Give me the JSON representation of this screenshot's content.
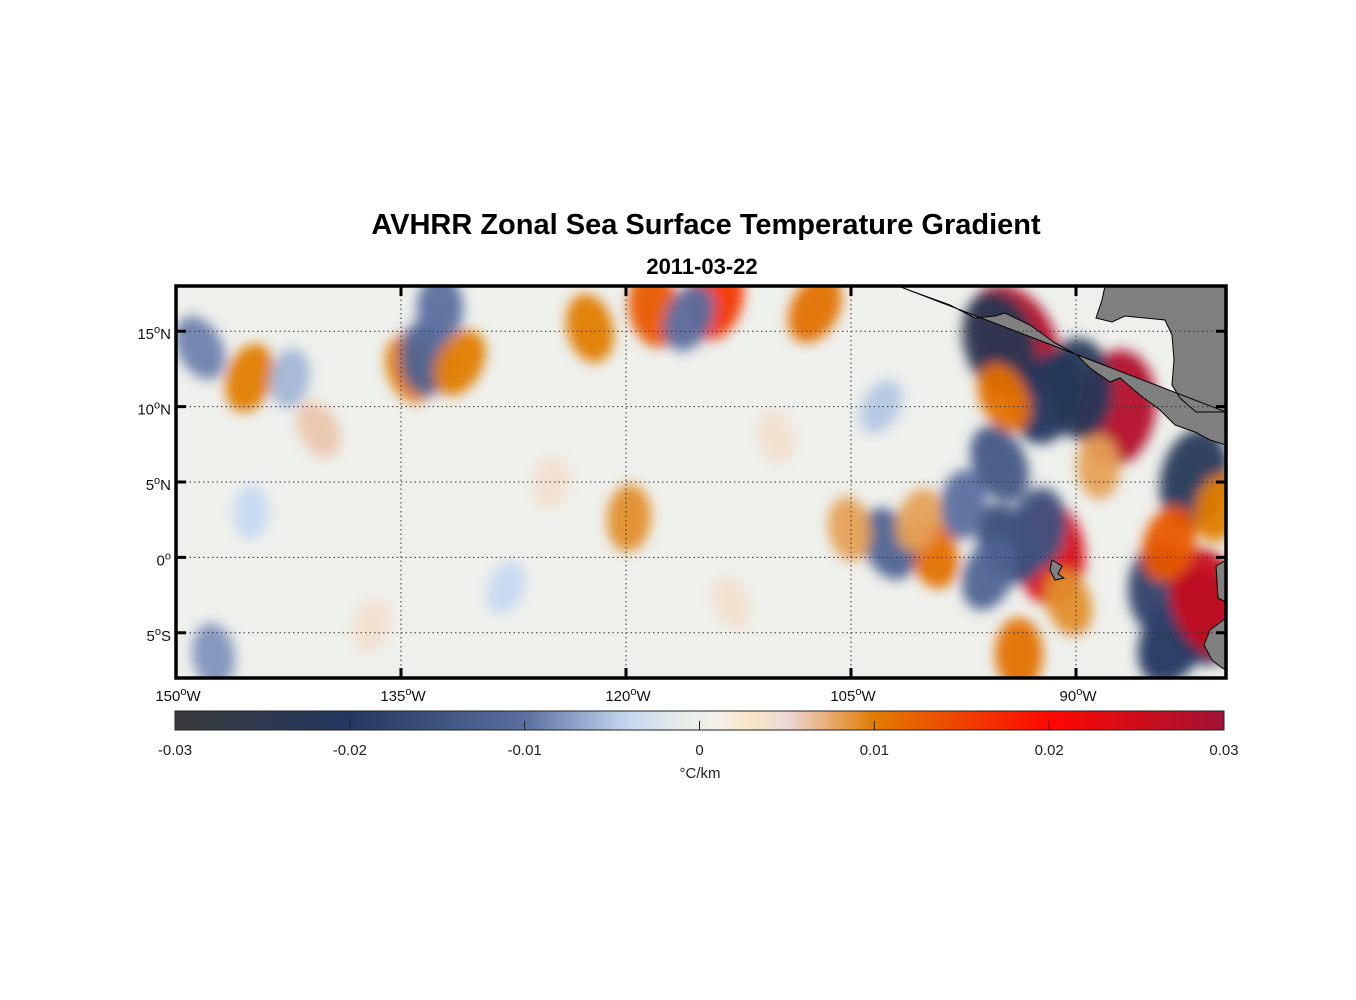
{
  "chart_data": {
    "type": "heatmap",
    "title": "AVHRR Zonal Sea Surface Temperature Gradient",
    "subtitle": "2011-03-22",
    "projection": "equirectangular",
    "lon_range": [
      -150,
      -80
    ],
    "lat_range": [
      -8,
      18
    ],
    "grid": true,
    "lon_ticks": [
      -150,
      -135,
      -120,
      -105,
      -90
    ],
    "lon_tick_labels": [
      "150",
      "135",
      "120",
      "105",
      "90"
    ],
    "lon_tick_suffix": "W",
    "lat_ticks": [
      15,
      10,
      5,
      0,
      -5
    ],
    "lat_tick_labels": [
      {
        "num": "15",
        "hemi": "N"
      },
      {
        "num": "10",
        "hemi": "N"
      },
      {
        "num": "5",
        "hemi": "N"
      },
      {
        "num": "0",
        "hemi": ""
      },
      {
        "num": "5",
        "hemi": "S"
      }
    ],
    "degree_symbol": "o",
    "colorbar": {
      "range": [
        -0.03,
        0.03
      ],
      "ticks": [
        -0.03,
        -0.02,
        -0.01,
        0,
        0.01,
        0.02,
        0.03
      ],
      "tick_labels": [
        "-0.03",
        "-0.02",
        "-0.01",
        "0",
        "0.01",
        "0.02",
        "0.03"
      ],
      "label": "°C/km",
      "colors": [
        {
          "v": -0.03,
          "c": "#3a3a3c"
        },
        {
          "v": -0.02,
          "c": "#23375f"
        },
        {
          "v": -0.01,
          "c": "#5b6f9f"
        },
        {
          "v": -0.004,
          "c": "#c6d8f0"
        },
        {
          "v": -0.001,
          "c": "#e6eee8"
        },
        {
          "v": 0.001,
          "c": "#f3efea"
        },
        {
          "v": 0.003,
          "c": "#f8e6c4"
        },
        {
          "v": 0.005,
          "c": "#ecd8d8"
        },
        {
          "v": 0.01,
          "c": "#e07c00"
        },
        {
          "v": 0.02,
          "c": "#ff0800"
        },
        {
          "v": 0.03,
          "c": "#a01235"
        }
      ]
    },
    "land_color": "#808080",
    "ocean_background": "#eef0ec",
    "features": [
      [
        -94.1,
        14.5,
        0.028
      ],
      [
        -87.3,
        9.9,
        0.028
      ],
      [
        -95.1,
        14.2,
        -0.024
      ],
      [
        -91.8,
        10.6,
        -0.02
      ],
      [
        -89.8,
        11.2,
        -0.022
      ],
      [
        -94.8,
        10.6,
        0.011
      ],
      [
        -82.1,
        5.2,
        -0.022
      ],
      [
        -81.5,
        -4.0,
        -0.02
      ],
      [
        -83.5,
        -5.4,
        -0.02
      ],
      [
        -84.5,
        -2.0,
        -0.018
      ],
      [
        -81.1,
        -3.0,
        0.026
      ],
      [
        -83.8,
        0.9,
        0.013
      ],
      [
        -91.8,
        0.3,
        0.024
      ],
      [
        -94.5,
        0.9,
        -0.016
      ],
      [
        -92.5,
        1.9,
        -0.015
      ],
      [
        -99.5,
        0.3,
        0.011
      ],
      [
        -95.8,
        -1.1,
        -0.012
      ],
      [
        -93.8,
        -6.4,
        0.011
      ],
      [
        -95.1,
        6.2,
        -0.014
      ],
      [
        -114.1,
        17.2,
        0.016
      ],
      [
        -118.1,
        16.5,
        0.013
      ],
      [
        -107.4,
        16.5,
        0.011
      ],
      [
        -119.8,
        2.6,
        0.009
      ],
      [
        -134.4,
        12.5,
        0.01
      ],
      [
        -145.1,
        11.9,
        0.01
      ],
      [
        -133.4,
        13.2,
        -0.012
      ],
      [
        -148.4,
        13.9,
        -0.009
      ],
      [
        -142.4,
        11.9,
        -0.006
      ],
      [
        -122.4,
        15.2,
        0.01
      ],
      [
        -115.8,
        15.9,
        -0.01
      ],
      [
        -132.4,
        16.5,
        -0.01
      ],
      [
        -102.5,
        0.9,
        -0.012
      ],
      [
        -80.5,
        3.3,
        0.01
      ],
      [
        -105.1,
        1.9,
        0.008
      ],
      [
        -131.1,
        12.9,
        0.01
      ],
      [
        -97.5,
        3.5,
        -0.01
      ],
      [
        -90.5,
        -3.0,
        0.009
      ],
      [
        -100.5,
        2.5,
        0.008
      ],
      [
        -88.5,
        6.0,
        0.008
      ],
      [
        -140.5,
        8.5,
        0.006
      ],
      [
        -125.0,
        5.0,
        0.004
      ],
      [
        -110.0,
        8.0,
        0.004
      ],
      [
        -128.0,
        -2.0,
        -0.004
      ],
      [
        -145.0,
        3.0,
        -0.004
      ],
      [
        -113.0,
        -3.0,
        0.004
      ],
      [
        -137.0,
        -4.5,
        0.004
      ],
      [
        -147.5,
        -6.5,
        -0.008
      ],
      [
        -103.0,
        10.0,
        -0.005
      ]
    ]
  }
}
